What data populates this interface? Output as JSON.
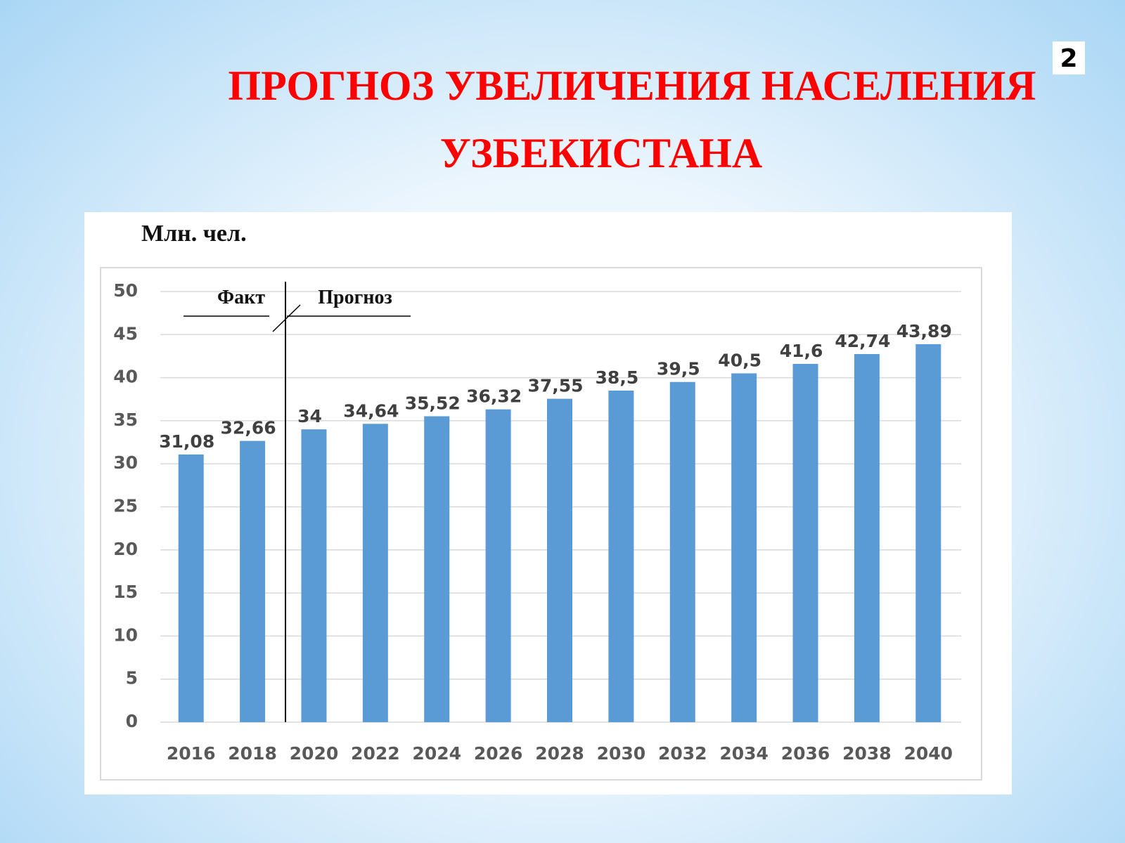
{
  "slide_number": 2,
  "chart_data": {
    "type": "bar",
    "title": [
      "ПРОГНОЗ УВЕЛИЧЕНИЯ НАСЕЛЕНИЯ",
      "УЗБЕКИСТАНА"
    ],
    "y_label": "Млн. чел.",
    "annotations": [
      "Факт",
      "Прогноз"
    ],
    "categories": [
      "2016",
      "2018",
      "2020",
      "2022",
      "2024",
      "2026",
      "2028",
      "2030",
      "2032",
      "2034",
      "2036",
      "2038",
      "2040"
    ],
    "values": [
      31.08,
      32.66,
      34,
      34.64,
      35.52,
      36.32,
      37.55,
      38.5,
      39.5,
      40.5,
      41.6,
      42.74,
      43.89
    ],
    "value_labels": [
      "31,08",
      "32,66",
      "34",
      "34,64",
      "35,52",
      "36,32",
      "37,55",
      "38,5",
      "39,5",
      "40,5",
      "41,6",
      "42,74",
      "43,89"
    ],
    "color": "#5b9bd5",
    "ylim": [
      0,
      50
    ],
    "yticks": [
      0,
      5,
      10,
      15,
      20,
      25,
      30,
      35,
      40,
      45,
      50
    ],
    "grid": true
  }
}
